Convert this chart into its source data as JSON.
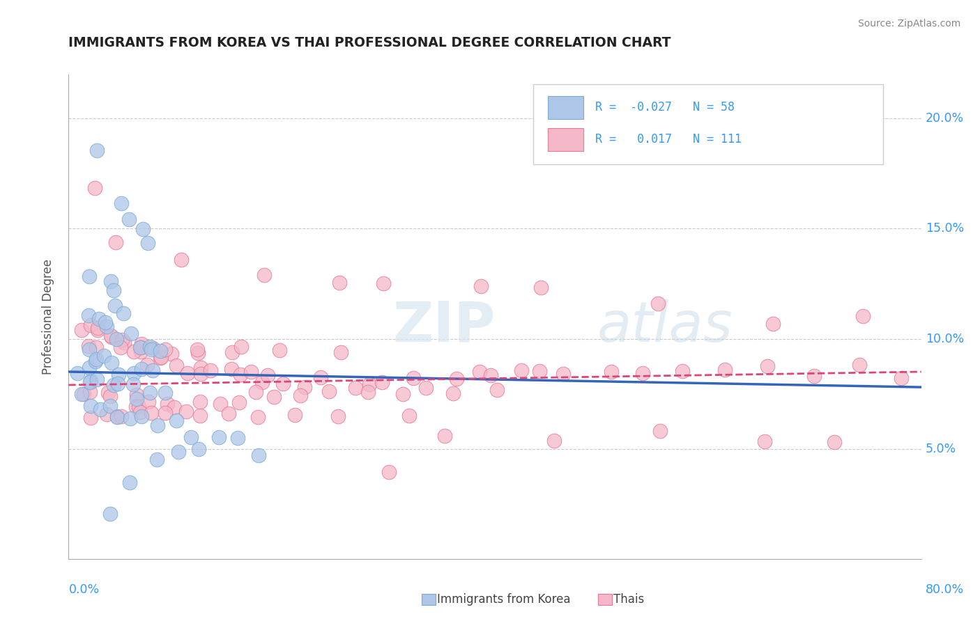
{
  "title": "IMMIGRANTS FROM KOREA VS THAI PROFESSIONAL DEGREE CORRELATION CHART",
  "source": "Source: ZipAtlas.com",
  "ylabel": "Professional Degree",
  "xlim": [
    0.0,
    80.0
  ],
  "ylim": [
    0.0,
    22.0
  ],
  "yticks": [
    0.0,
    5.0,
    10.0,
    15.0,
    20.0
  ],
  "ytick_labels": [
    "",
    "5.0%",
    "10.0%",
    "15.0%",
    "20.0%"
  ],
  "korea_color": "#aec6e8",
  "korea_edge_color": "#7aaad4",
  "thai_color": "#f4b8c8",
  "thai_edge_color": "#e87898",
  "korea_R": -0.027,
  "korea_N": 58,
  "thai_R": 0.017,
  "thai_N": 111,
  "legend_korea_label": "Immigrants from Korea",
  "legend_thai_label": "Thais",
  "watermark_zip": "ZIP",
  "watermark_atlas": "atlas",
  "background_color": "#ffffff",
  "grid_color": "#bbbbbb",
  "korea_line_color": "#3366bb",
  "thai_line_color": "#dd4477",
  "korea_line_start": 8.5,
  "korea_line_end": 7.8,
  "thai_line_start": 7.9,
  "thai_line_end": 8.5,
  "korea_scatter_x": [
    2.5,
    5.0,
    5.5,
    6.5,
    7.5,
    2.0,
    3.5,
    4.0,
    4.5,
    5.0,
    2.0,
    3.0,
    3.5,
    4.0,
    5.0,
    6.0,
    7.0,
    7.5,
    8.0,
    9.0,
    1.5,
    2.0,
    2.5,
    3.0,
    3.5,
    4.0,
    5.0,
    6.0,
    7.0,
    8.0,
    1.0,
    1.5,
    2.0,
    3.0,
    4.0,
    5.0,
    6.0,
    7.0,
    8.0,
    9.0,
    1.0,
    2.0,
    3.0,
    4.0,
    5.0,
    6.0,
    7.0,
    8.0,
    10.0,
    12.0,
    14.0,
    16.0,
    18.0,
    12.0,
    8.0,
    10.0,
    6.0,
    4.0
  ],
  "korea_scatter_y": [
    18.5,
    16.0,
    15.5,
    15.0,
    14.5,
    13.0,
    12.5,
    12.0,
    11.5,
    11.0,
    11.0,
    11.0,
    10.5,
    10.5,
    10.0,
    10.0,
    10.0,
    9.5,
    9.5,
    9.5,
    9.5,
    9.0,
    9.0,
    9.0,
    9.0,
    9.0,
    8.5,
    8.5,
    8.5,
    8.5,
    8.5,
    8.0,
    8.0,
    8.0,
    8.0,
    8.0,
    8.0,
    7.5,
    7.5,
    7.5,
    7.5,
    7.0,
    7.0,
    7.0,
    6.5,
    6.5,
    6.5,
    6.0,
    6.0,
    5.5,
    5.5,
    5.5,
    5.0,
    5.0,
    4.5,
    4.5,
    3.5,
    2.0
  ],
  "thai_scatter_x": [
    2.5,
    5.0,
    10.0,
    18.0,
    25.0,
    30.0,
    38.0,
    45.0,
    55.0,
    65.0,
    75.0,
    1.5,
    2.0,
    3.0,
    3.5,
    4.0,
    4.5,
    5.0,
    5.5,
    6.0,
    6.5,
    7.0,
    7.5,
    8.0,
    8.5,
    9.0,
    9.5,
    10.0,
    11.0,
    12.0,
    13.0,
    14.0,
    15.0,
    16.0,
    17.0,
    18.0,
    19.0,
    20.0,
    22.0,
    24.0,
    26.0,
    28.0,
    30.0,
    32.0,
    34.0,
    36.0,
    38.0,
    40.0,
    42.0,
    44.0,
    46.0,
    50.0,
    54.0,
    58.0,
    62.0,
    66.0,
    70.0,
    74.0,
    78.0,
    1.0,
    2.0,
    3.0,
    4.0,
    5.0,
    6.0,
    7.0,
    8.0,
    9.0,
    10.0,
    12.0,
    14.0,
    16.0,
    18.0,
    20.0,
    22.0,
    24.0,
    28.0,
    32.0,
    36.0,
    40.0,
    2.5,
    3.5,
    4.5,
    5.5,
    6.5,
    7.5,
    8.5,
    10.5,
    13.0,
    15.5,
    17.5,
    21.0,
    25.0,
    30.0,
    35.0,
    45.0,
    55.0,
    65.0,
    72.0,
    1.5,
    3.0,
    5.0,
    7.0,
    9.0,
    11.0,
    13.0,
    15.0,
    17.0,
    20.0,
    25.0,
    30.0
  ],
  "thai_scatter_y": [
    17.0,
    14.5,
    13.5,
    13.0,
    12.5,
    12.5,
    12.5,
    12.0,
    11.5,
    11.0,
    11.0,
    10.5,
    10.5,
    10.5,
    10.5,
    10.0,
    10.0,
    10.0,
    10.0,
    9.5,
    9.5,
    9.5,
    9.5,
    9.0,
    9.0,
    9.0,
    9.0,
    9.0,
    8.5,
    8.5,
    8.5,
    8.5,
    8.5,
    8.5,
    8.5,
    8.5,
    8.5,
    8.0,
    8.0,
    8.0,
    8.0,
    8.0,
    8.0,
    8.0,
    8.0,
    8.0,
    8.5,
    8.5,
    8.5,
    8.5,
    8.5,
    8.5,
    8.5,
    8.5,
    8.5,
    8.5,
    8.5,
    8.5,
    8.5,
    7.5,
    7.5,
    7.5,
    7.5,
    7.5,
    7.0,
    7.0,
    7.0,
    7.0,
    7.0,
    7.0,
    7.0,
    7.0,
    7.5,
    7.5,
    7.5,
    7.5,
    7.5,
    7.5,
    7.5,
    7.5,
    6.5,
    6.5,
    6.5,
    6.5,
    6.5,
    6.5,
    6.5,
    6.5,
    6.5,
    6.5,
    6.5,
    6.5,
    6.5,
    6.5,
    5.5,
    5.5,
    5.5,
    5.5,
    5.5,
    9.5,
    9.5,
    9.5,
    9.5,
    9.5,
    9.5,
    9.5,
    9.5,
    9.5,
    9.5,
    9.5,
    4.0
  ]
}
